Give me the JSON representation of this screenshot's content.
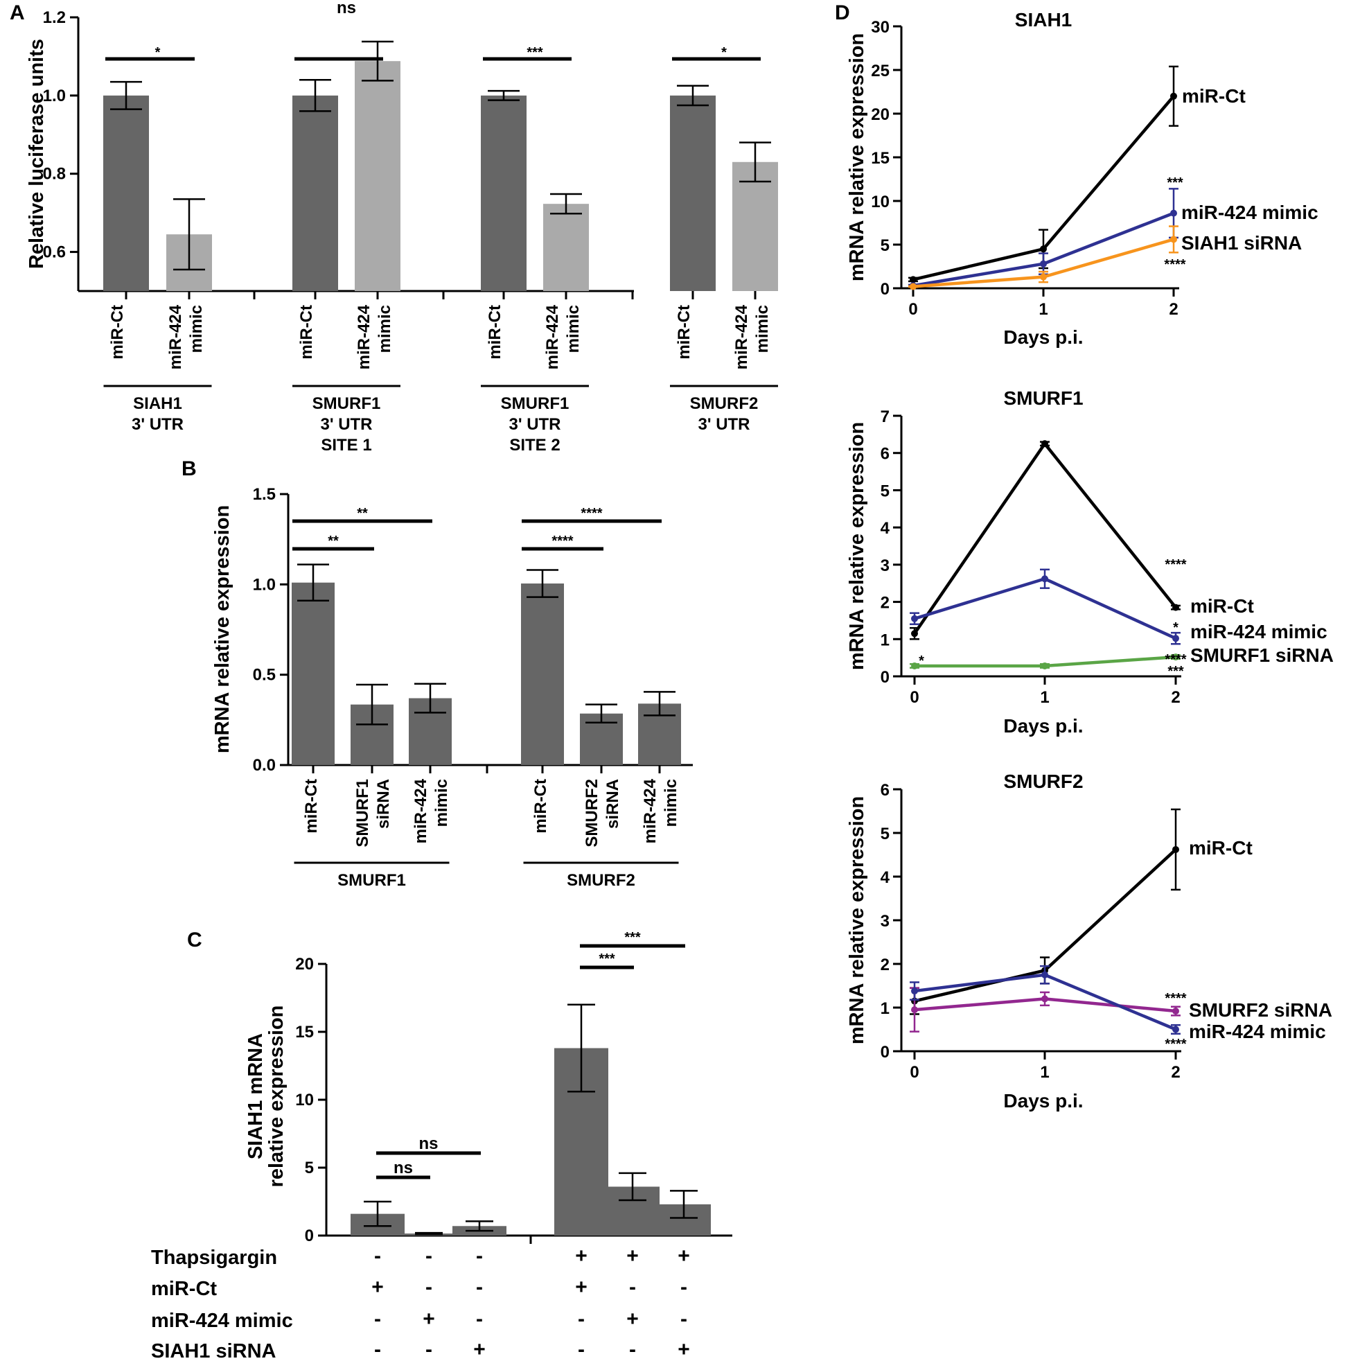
{
  "chart_data": [
    {
      "panel": "A",
      "type": "bar",
      "ylabel": "Relative luciferase units",
      "ylim": [
        0.5,
        1.2
      ],
      "yticks": [
        "0.6",
        "0.8",
        "1.0",
        "1.2"
      ],
      "groups": [
        {
          "label": [
            "SIAH1",
            "3' UTR"
          ],
          "bars": [
            {
              "label": [
                "miR-Ct"
              ],
              "value": 1.0,
              "err": 0.035,
              "color": "#666666"
            },
            {
              "label": [
                "miR-424",
                "mimic"
              ],
              "value": 0.645,
              "err": 0.09,
              "color": "#aaaaaa"
            }
          ],
          "sig": "*"
        },
        {
          "label": [
            "SMURF1",
            "3' UTR",
            "SITE 1"
          ],
          "bars": [
            {
              "label": [
                "miR-Ct"
              ],
              "value": 1.0,
              "err": 0.04,
              "color": "#666666"
            },
            {
              "label": [
                "miR-424",
                "mimic"
              ],
              "value": 1.088,
              "err": 0.05,
              "color": "#aaaaaa"
            }
          ],
          "sig": "ns"
        },
        {
          "label": [
            "SMURF1",
            "3' UTR",
            "SITE 2"
          ],
          "bars": [
            {
              "label": [
                "miR-Ct"
              ],
              "value": 1.0,
              "err": 0.012,
              "color": "#666666"
            },
            {
              "label": [
                "miR-424",
                "mimic"
              ],
              "value": 0.723,
              "err": 0.025,
              "color": "#aaaaaa"
            }
          ],
          "sig": "***"
        },
        {
          "label": [
            "SMURF2",
            "3' UTR"
          ],
          "bars": [
            {
              "label": [
                "miR-Ct"
              ],
              "value": 1.0,
              "err": 0.025,
              "color": "#666666"
            },
            {
              "label": [
                "miR-424",
                "mimic"
              ],
              "value": 0.83,
              "err": 0.05,
              "color": "#aaaaaa"
            }
          ],
          "sig": "*"
        }
      ]
    },
    {
      "panel": "B",
      "type": "bar",
      "ylabel": "mRNA relative expression",
      "ylim": [
        0,
        1.5
      ],
      "yticks": [
        "0.0",
        "0.5",
        "1.0",
        "1.5"
      ],
      "groups": [
        {
          "label": [
            "SMURF1"
          ],
          "bars": [
            {
              "label": [
                "miR-Ct"
              ],
              "value": 1.01,
              "err": 0.1
            },
            {
              "label": [
                "SMURF1",
                "siRNA"
              ],
              "value": 0.335,
              "err": 0.11
            },
            {
              "label": [
                "miR-424",
                "mimic"
              ],
              "value": 0.37,
              "err": 0.08
            }
          ],
          "sigs": [
            {
              "from": 0,
              "to": 1,
              "text": "**"
            },
            {
              "from": 0,
              "to": 2,
              "text": "**"
            }
          ]
        },
        {
          "label": [
            "SMURF2"
          ],
          "bars": [
            {
              "label": [
                "miR-Ct"
              ],
              "value": 1.005,
              "err": 0.075
            },
            {
              "label": [
                "SMURF2",
                "siRNA"
              ],
              "value": 0.285,
              "err": 0.05
            },
            {
              "label": [
                "miR-424",
                "mimic"
              ],
              "value": 0.34,
              "err": 0.065
            }
          ],
          "sigs": [
            {
              "from": 0,
              "to": 1,
              "text": "****"
            },
            {
              "from": 0,
              "to": 2,
              "text": "****"
            }
          ]
        }
      ]
    },
    {
      "panel": "C",
      "type": "bar",
      "ylabel": [
        "SIAH1 mRNA",
        "relative expression"
      ],
      "ylim": [
        0,
        20
      ],
      "yticks": [
        "0",
        "5",
        "10",
        "15",
        "20"
      ],
      "bars": [
        {
          "value": 1.6,
          "err": 0.9
        },
        {
          "value": 0.15,
          "err": 0.05
        },
        {
          "value": 0.7,
          "err": 0.35
        },
        {
          "value": 13.8,
          "err": 3.2
        },
        {
          "value": 3.6,
          "err": 1.0
        },
        {
          "value": 2.3,
          "err": 1.0
        }
      ],
      "sigs": [
        {
          "from": 0,
          "to": 1,
          "text": "ns"
        },
        {
          "from": 0,
          "to": 2,
          "text": "ns"
        },
        {
          "from": 3,
          "to": 4,
          "text": "***"
        },
        {
          "from": 3,
          "to": 5,
          "text": "***"
        }
      ],
      "conditions": [
        {
          "name": "Thapsigargin",
          "values": [
            "-",
            "-",
            "-",
            "+",
            "+",
            "+"
          ]
        },
        {
          "name": "miR-Ct",
          "values": [
            "+",
            "-",
            "-",
            "+",
            "-",
            "-"
          ]
        },
        {
          "name": "miR-424 mimic",
          "values": [
            "-",
            "+",
            "-",
            "-",
            "+",
            "-"
          ]
        },
        {
          "name": "SIAH1 siRNA",
          "values": [
            "-",
            "-",
            "+",
            "-",
            "-",
            "+"
          ]
        }
      ]
    },
    {
      "panel": "D",
      "type": "line",
      "title": "SIAH1",
      "xlabel": "Days p.i.",
      "ylabel": "mRNA relative expression",
      "x": [
        0,
        1,
        2
      ],
      "xticks": [
        "0",
        "1",
        "2"
      ],
      "ylim": [
        0,
        30
      ],
      "yticks": [
        "0",
        "5",
        "10",
        "15",
        "20",
        "25",
        "30"
      ],
      "series": [
        {
          "name": "miR-Ct",
          "color": "#000000",
          "values": [
            1.0,
            4.5,
            22.0
          ],
          "err": [
            0.2,
            2.2,
            3.4
          ]
        },
        {
          "name": "miR-424 mimic",
          "color": "#2e3192",
          "values": [
            0.3,
            2.8,
            8.6
          ],
          "err": [
            0.1,
            1.2,
            2.8
          ]
        },
        {
          "name": "SIAH1 siRNA",
          "color": "#f7941d",
          "values": [
            0.2,
            1.3,
            5.6
          ],
          "err": [
            0.05,
            0.6,
            1.5
          ]
        }
      ],
      "annotations": [
        "***",
        "****"
      ]
    },
    {
      "panel": "D",
      "type": "line",
      "title": "SMURF1",
      "xlabel": "Days p.i.",
      "ylabel": "mRNA relative expression",
      "x": [
        0,
        1,
        2
      ],
      "xticks": [
        "0",
        "1",
        "2"
      ],
      "ylim": [
        0,
        7
      ],
      "yticks": [
        "0",
        "1",
        "2",
        "3",
        "4",
        "5",
        "6",
        "7"
      ],
      "series": [
        {
          "name": "miR-Ct",
          "color": "#000000",
          "values": [
            1.15,
            6.25,
            1.85
          ],
          "err": [
            0.15,
            0.05,
            0.05
          ]
        },
        {
          "name": "miR-424 mimic",
          "color": "#2e3192",
          "values": [
            1.55,
            2.62,
            1.02
          ],
          "err": [
            0.15,
            0.25,
            0.15
          ]
        },
        {
          "name": "SMURF1 siRNA",
          "color": "#5aa546",
          "values": [
            0.28,
            0.28,
            0.52
          ],
          "err": [
            0.05,
            0.05,
            0.05
          ]
        }
      ],
      "annotations": [
        "****",
        "*",
        "*",
        "****",
        "***"
      ]
    },
    {
      "panel": "D",
      "type": "line",
      "title": "SMURF2",
      "xlabel": "Days p.i.",
      "ylabel": "mRNA relative expression",
      "x": [
        0,
        1,
        2
      ],
      "xticks": [
        "0",
        "1",
        "2"
      ],
      "ylim": [
        0,
        6
      ],
      "yticks": [
        "0",
        "1",
        "2",
        "3",
        "4",
        "5",
        "6"
      ],
      "series": [
        {
          "name": "miR-Ct",
          "color": "#000000",
          "values": [
            1.15,
            1.85,
            4.62
          ],
          "err": [
            0.3,
            0.3,
            0.92
          ]
        },
        {
          "name": "SMURF2 siRNA",
          "color": "#92278f",
          "values": [
            0.95,
            1.2,
            0.92
          ],
          "err": [
            0.5,
            0.15,
            0.1
          ]
        },
        {
          "name": "miR-424 mimic",
          "color": "#2e3192",
          "values": [
            1.38,
            1.75,
            0.5
          ],
          "err": [
            0.2,
            0.2,
            0.1
          ]
        }
      ],
      "annotations": [
        "****",
        "****"
      ]
    }
  ]
}
